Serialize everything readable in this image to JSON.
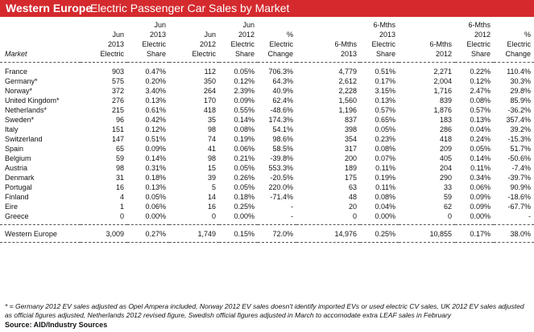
{
  "banner": {
    "region": "Western Europe",
    "subtitle": "Electric Passenger Car Sales by Market"
  },
  "table": {
    "headers": [
      [
        "",
        "",
        "Jun",
        "",
        "Jun",
        "",
        "",
        "6-Mths",
        "",
        "6-Mths",
        ""
      ],
      [
        "",
        "Jun",
        "2013",
        "Jun",
        "2012",
        "%",
        "",
        "2013",
        "",
        "2012",
        "%"
      ],
      [
        "",
        "2013",
        "Electric",
        "2012",
        "Electric",
        "Electric",
        "6-Mths",
        "Electric",
        "6-Mths",
        "Electric",
        "Electric"
      ],
      [
        "Market",
        "Electric",
        "Share",
        "Electric",
        "Share",
        "Change",
        "2013",
        "Share",
        "2012",
        "Share",
        "Change"
      ]
    ],
    "header_rows": [
      [
        {
          "t": "h0c2",
          "v": ""
        }
      ],
      []
    ],
    "rows": [
      [
        "France",
        "903",
        "0.47%",
        "112",
        "0.05%",
        "706.3%",
        "4,779",
        "0.51%",
        "2,271",
        "0.22%",
        "110.4%"
      ],
      [
        "Germany*",
        "575",
        "0.20%",
        "350",
        "0.12%",
        "64.3%",
        "2,612",
        "0.17%",
        "2,004",
        "0.12%",
        "30.3%"
      ],
      [
        "Norway*",
        "372",
        "3.40%",
        "264",
        "2.39%",
        "40.9%",
        "2,228",
        "3.15%",
        "1,716",
        "2.47%",
        "29.8%"
      ],
      [
        "United Kingdom*",
        "276",
        "0.13%",
        "170",
        "0.09%",
        "62.4%",
        "1,560",
        "0.13%",
        "839",
        "0.08%",
        "85.9%"
      ],
      [
        "Netherlands*",
        "215",
        "0.61%",
        "418",
        "0.55%",
        "-48.6%",
        "1,196",
        "0.57%",
        "1,876",
        "0.57%",
        "-36.2%"
      ],
      [
        "Sweden*",
        "96",
        "0.42%",
        "35",
        "0.14%",
        "174.3%",
        "837",
        "0.65%",
        "183",
        "0.13%",
        "357.4%"
      ],
      [
        "Italy",
        "151",
        "0.12%",
        "98",
        "0.08%",
        "54.1%",
        "398",
        "0.05%",
        "286",
        "0.04%",
        "39.2%"
      ],
      [
        "Switzerland",
        "147",
        "0.51%",
        "74",
        "0.19%",
        "98.6%",
        "354",
        "0.23%",
        "418",
        "0.24%",
        "-15.3%"
      ],
      [
        "Spain",
        "65",
        "0.09%",
        "41",
        "0.06%",
        "58.5%",
        "317",
        "0.08%",
        "209",
        "0.05%",
        "51.7%"
      ],
      [
        "Belgium",
        "59",
        "0.14%",
        "98",
        "0.21%",
        "-39.8%",
        "200",
        "0.07%",
        "405",
        "0.14%",
        "-50.6%"
      ],
      [
        "Austria",
        "98",
        "0.31%",
        "15",
        "0.05%",
        "553.3%",
        "189",
        "0.11%",
        "204",
        "0.11%",
        "-7.4%"
      ],
      [
        "Denmark",
        "31",
        "0.18%",
        "39",
        "0.26%",
        "-20.5%",
        "175",
        "0.19%",
        "290",
        "0.34%",
        "-39.7%"
      ],
      [
        "Portugal",
        "16",
        "0.13%",
        "5",
        "0.05%",
        "220.0%",
        "63",
        "0.11%",
        "33",
        "0.06%",
        "90.9%"
      ],
      [
        "Finland",
        "4",
        "0.05%",
        "14",
        "0.18%",
        "-71.4%",
        "48",
        "0.08%",
        "59",
        "0.09%",
        "-18.6%"
      ],
      [
        "Eire",
        "1",
        "0.06%",
        "16",
        "0.25%",
        "-",
        "20",
        "0.04%",
        "62",
        "0.09%",
        "-67.7%"
      ],
      [
        "Greece",
        "0",
        "0.00%",
        "0",
        "0.00%",
        "-",
        "0",
        "0.00%",
        "0",
        "0.00%",
        "-"
      ]
    ],
    "total": [
      "Western Europe",
      "3,009",
      "0.27%",
      "1,749",
      "0.15%",
      "72.0%",
      "14,976",
      "0.25%",
      "10,855",
      "0.17%",
      "38.0%"
    ]
  },
  "footnote": "* = Germany 2012 EV sales adjusted as Opel Ampera included, Norway 2012 EV sales doesn't identify imported EVs or used electric CV sales, UK 2012 EV sales adjusted as official figures adjusted, Netherlands 2012 revised figure, Swedish official figures adjusted in March to accomodate extra LEAF sales in February",
  "source": "Source: AID/Industry Sources"
}
